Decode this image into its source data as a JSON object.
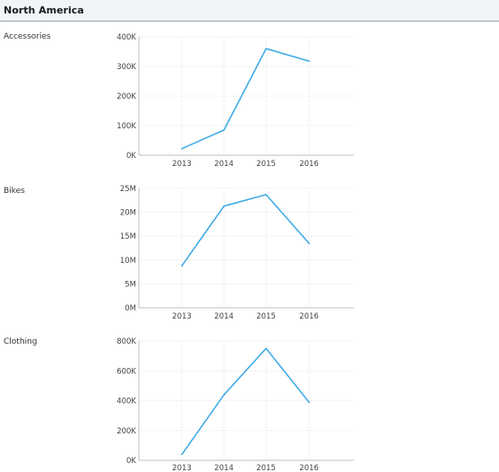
{
  "header": {
    "title": "North America"
  },
  "colors": {
    "line": "#41abe6"
  },
  "chart_data": [
    {
      "type": "line",
      "label": "Accessories",
      "categories": [
        "2013",
        "2014",
        "2015",
        "2016"
      ],
      "values": [
        22000,
        85000,
        360000,
        318000
      ],
      "ylim": [
        0,
        400000
      ],
      "yticks": [
        0,
        100000,
        200000,
        300000,
        400000
      ],
      "ytick_labels": [
        "0K",
        "100K",
        "200K",
        "300K",
        "400K"
      ],
      "grid": true
    },
    {
      "type": "line",
      "label": "Bikes",
      "categories": [
        "2013",
        "2014",
        "2015",
        "2016"
      ],
      "values": [
        8800000,
        21300000,
        23700000,
        13500000
      ],
      "ylim": [
        0,
        25000000
      ],
      "yticks": [
        0,
        5000000,
        10000000,
        15000000,
        20000000,
        25000000
      ],
      "ytick_labels": [
        "0M",
        "5M",
        "10M",
        "15M",
        "20M",
        "25M"
      ],
      "grid": true
    },
    {
      "type": "line",
      "label": "Clothing",
      "categories": [
        "2013",
        "2014",
        "2015",
        "2016"
      ],
      "values": [
        40000,
        440000,
        750000,
        390000
      ],
      "ylim": [
        0,
        800000
      ],
      "yticks": [
        0,
        200000,
        400000,
        600000,
        800000
      ],
      "ytick_labels": [
        "0K",
        "200K",
        "400K",
        "600K",
        "800K"
      ],
      "grid": true
    }
  ]
}
